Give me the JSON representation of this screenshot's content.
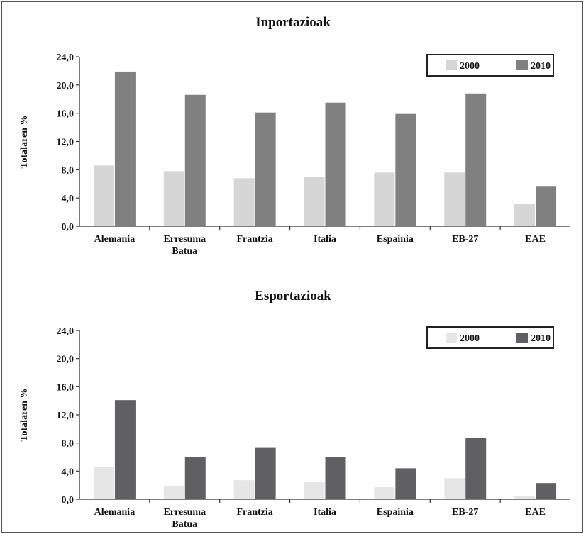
{
  "chart_data": [
    {
      "type": "bar",
      "title": "Inportazioak",
      "ylabel": "Totalaren %",
      "xlabel": "",
      "ylim": [
        0,
        24
      ],
      "yticks": [
        "0,0",
        "4,0",
        "8,0",
        "12,0",
        "16,0",
        "20,0",
        "24,0"
      ],
      "categories": [
        "Alemania",
        "Erresuma Batua",
        "Frantzia",
        "Italia",
        "Espainia",
        "EB-27",
        "EAE"
      ],
      "series": [
        {
          "name": "2000",
          "color": "#d6d6d6",
          "values": [
            8.6,
            7.8,
            6.8,
            7.0,
            7.6,
            7.6,
            3.1
          ]
        },
        {
          "name": "2010",
          "color": "#808080",
          "values": [
            21.9,
            18.6,
            16.1,
            17.5,
            15.9,
            18.8,
            5.7
          ]
        }
      ],
      "legend_position": "top-right",
      "grid": false
    },
    {
      "type": "bar",
      "title": "Esportazioak",
      "ylabel": "Totalaren %",
      "xlabel": "",
      "ylim": [
        0,
        24
      ],
      "yticks": [
        "0,0",
        "4,0",
        "8,0",
        "12,0",
        "16,0",
        "20,0",
        "24,0"
      ],
      "categories": [
        "Alemania",
        "Erresuma Batua",
        "Frantzia",
        "Italia",
        "Espainia",
        "EB-27",
        "EAE"
      ],
      "series": [
        {
          "name": "2000",
          "color": "#e6e6e6",
          "values": [
            4.6,
            1.9,
            2.7,
            2.5,
            1.7,
            3.0,
            0.4
          ]
        },
        {
          "name": "2010",
          "color": "#606063",
          "values": [
            14.1,
            6.0,
            7.3,
            6.0,
            4.4,
            8.7,
            2.3
          ]
        }
      ],
      "legend_position": "top-right",
      "grid": false
    }
  ]
}
